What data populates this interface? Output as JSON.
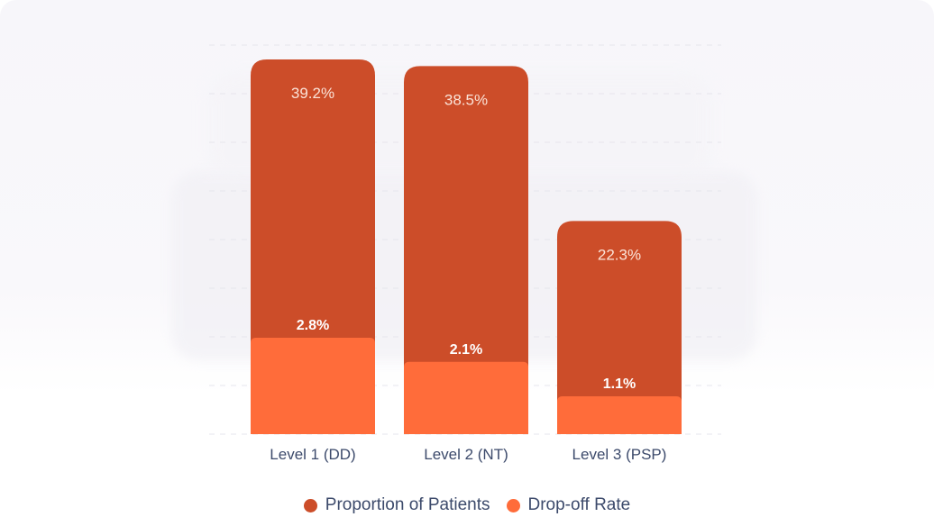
{
  "chart_data": {
    "type": "bar",
    "stacked": "overlay",
    "categories": [
      "Level 1 (DD)",
      "Level 2 (NT)",
      "Level 3 (PSP)"
    ],
    "series": [
      {
        "name": "Proportion of Patients",
        "values": [
          39.2,
          38.5,
          22.3
        ],
        "labels": [
          "39.2%",
          "38.5%",
          "22.3%"
        ],
        "color": "#cc4d29"
      },
      {
        "name": "Drop-off Rate",
        "values": [
          2.8,
          2.1,
          1.1
        ],
        "labels": [
          "2.8%",
          "2.1%",
          "1.1%"
        ],
        "color": "#ff6c3a"
      }
    ],
    "ylim": [
      0,
      40
    ],
    "grid": true,
    "legend": "bottom-center",
    "title": "",
    "xlabel": "",
    "ylabel": ""
  }
}
